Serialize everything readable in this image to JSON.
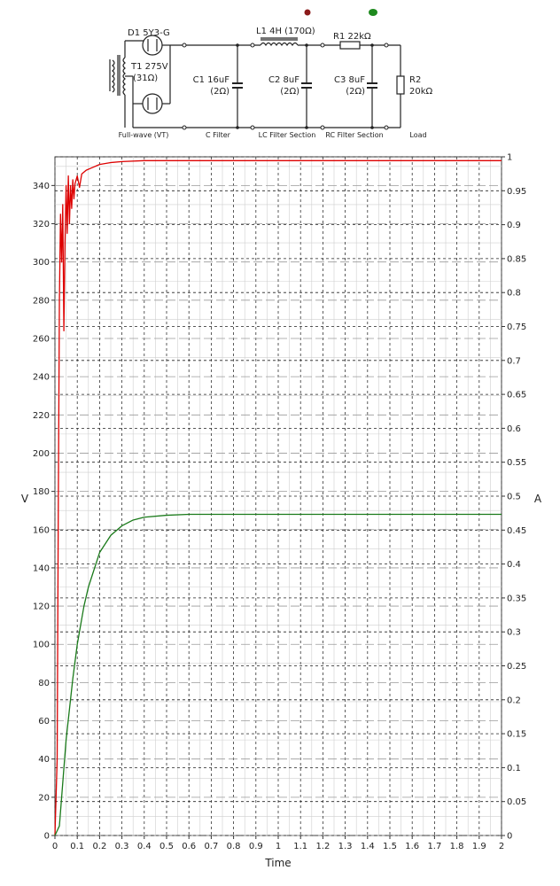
{
  "schematic": {
    "components": {
      "rectifier": "D1 5Y3-G",
      "transformer": [
        "T1 275V",
        "(31Ω)"
      ],
      "c1": [
        "C1 16uF",
        "(2Ω)"
      ],
      "l1": "L1 4H (170Ω)",
      "c2": [
        "C2 8uF",
        "(2Ω)"
      ],
      "r1": "R1 22kΩ",
      "c3": [
        "C3 8uF",
        "(2Ω)"
      ],
      "r2": [
        "R2",
        "20kΩ"
      ]
    },
    "section_labels": [
      "Full-wave (VT)",
      "C Filter",
      "LC Filter Section",
      "RC Filter Section",
      "Load"
    ],
    "indicator_colors": {
      "red_probe": "#8b1a1a",
      "green_probe": "#1e8a1e"
    }
  },
  "chart_data": {
    "type": "line",
    "xlabel": "Time",
    "ylabel_left": "V",
    "ylabel_right": "A",
    "xlim": [
      0,
      2
    ],
    "ylim_left": [
      0,
      355
    ],
    "ylim_right": [
      0,
      1
    ],
    "x_ticks": [
      "0",
      "0.1",
      "0.2",
      "0.3",
      "0.4",
      "0.5",
      "0.6",
      "0.7",
      "0.8",
      "0.9",
      "1",
      "1.1",
      "1.2",
      "1.3",
      "1.4",
      "1.5",
      "1.6",
      "1.7",
      "1.8",
      "1.9",
      "2"
    ],
    "y_ticks_left": [
      "0",
      "20",
      "40",
      "60",
      "80",
      "100",
      "120",
      "140",
      "160",
      "180",
      "200",
      "220",
      "240",
      "260",
      "280",
      "300",
      "320",
      "340"
    ],
    "y_ticks_right": [
      "0",
      "0.05",
      "0.1",
      "0.15",
      "0.2",
      "0.25",
      "0.3",
      "0.35",
      "0.4",
      "0.45",
      "0.5",
      "0.55",
      "0.6",
      "0.65",
      "0.7",
      "0.75",
      "0.8",
      "0.85",
      "0.9",
      "0.95",
      "1"
    ],
    "grid": true,
    "series": [
      {
        "color": "#dd0000",
        "axis": "left",
        "x": [
          0,
          0.01,
          0.015,
          0.02,
          0.025,
          0.03,
          0.035,
          0.04,
          0.045,
          0.05,
          0.055,
          0.06,
          0.065,
          0.07,
          0.075,
          0.08,
          0.085,
          0.09,
          0.1,
          0.11,
          0.12,
          0.14,
          0.16,
          0.2,
          0.25,
          0.3,
          0.4,
          0.5,
          0.6,
          1.0,
          1.5,
          2.0
        ],
        "y": [
          0,
          40,
          170,
          280,
          325,
          300,
          330,
          264,
          310,
          340,
          315,
          345,
          320,
          340,
          328,
          343,
          333,
          341,
          345,
          339,
          346,
          348,
          349,
          351,
          352,
          352.5,
          353,
          353,
          353,
          353,
          353,
          353
        ]
      },
      {
        "color": "#1a7a1a",
        "axis": "left",
        "x": [
          0,
          0.02,
          0.03,
          0.05,
          0.08,
          0.1,
          0.13,
          0.15,
          0.2,
          0.25,
          0.3,
          0.35,
          0.4,
          0.5,
          0.6,
          0.8,
          1.0,
          1.5,
          2.0
        ],
        "y": [
          0,
          5,
          20,
          50,
          82,
          100,
          120,
          130,
          148,
          157,
          162,
          165,
          166.5,
          167.5,
          168,
          168,
          168,
          168,
          168
        ]
      }
    ]
  }
}
